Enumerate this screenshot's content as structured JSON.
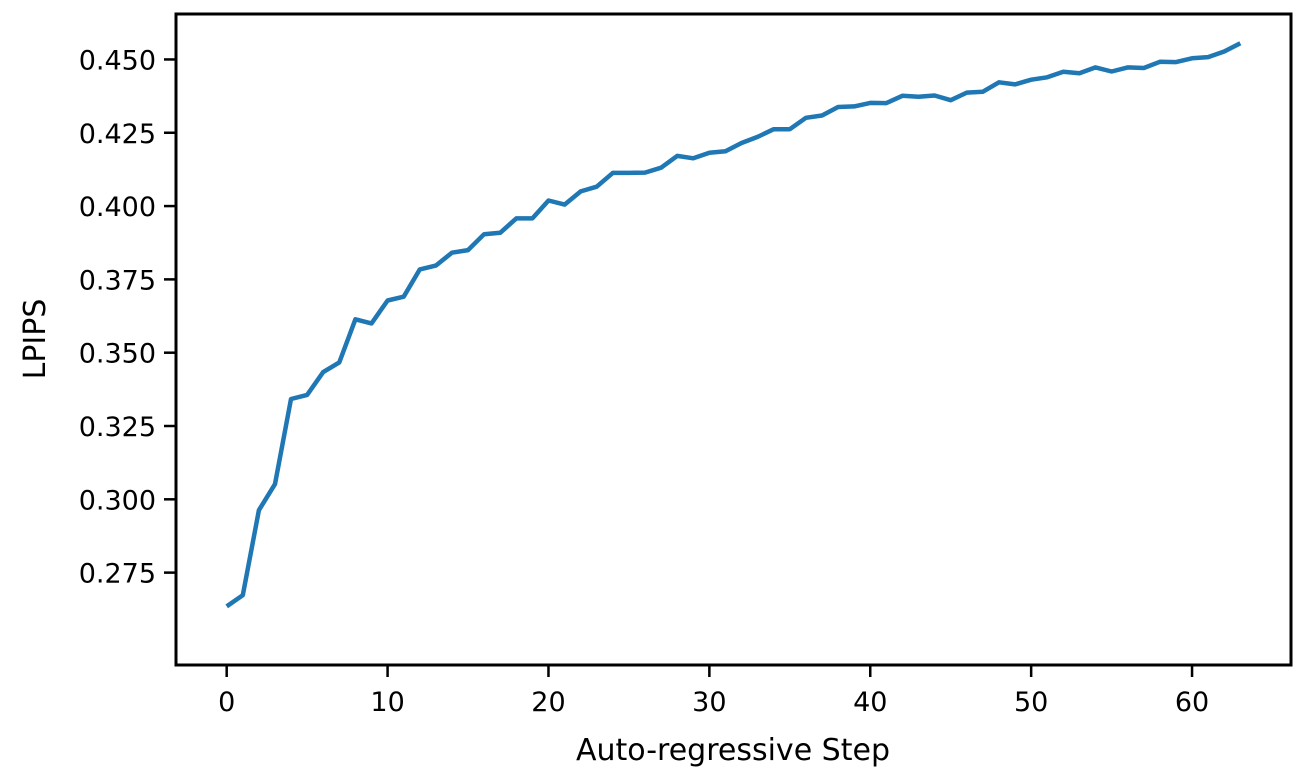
{
  "chart_data": {
    "type": "line",
    "title": "",
    "xlabel": "Auto-regressive Step",
    "ylabel": "LPIPS",
    "xlim": [
      -3.15,
      66.15
    ],
    "ylim": [
      0.2435,
      0.4655
    ],
    "xticks": [
      0,
      10,
      20,
      30,
      40,
      50,
      60
    ],
    "xtick_labels": [
      "0",
      "10",
      "20",
      "30",
      "40",
      "50",
      "60"
    ],
    "yticks": [
      0.275,
      0.3,
      0.325,
      0.35,
      0.375,
      0.4,
      0.425,
      0.45
    ],
    "ytick_labels": [
      "0.275",
      "0.300",
      "0.325",
      "0.350",
      "0.375",
      "0.400",
      "0.425",
      "0.450"
    ],
    "grid": false,
    "legend": "none",
    "series": [
      {
        "color": "#1f77b4",
        "x": [
          0,
          1,
          2,
          3,
          4,
          5,
          6,
          7,
          8,
          9,
          10,
          11,
          12,
          13,
          14,
          15,
          16,
          17,
          18,
          19,
          20,
          21,
          22,
          23,
          24,
          25,
          26,
          27,
          28,
          29,
          30,
          31,
          32,
          33,
          34,
          35,
          36,
          37,
          38,
          39,
          40,
          41,
          42,
          43,
          44,
          45,
          46,
          47,
          48,
          49,
          50,
          51,
          52,
          53,
          54,
          55,
          56,
          57,
          58,
          59,
          60,
          61,
          62,
          63
        ],
        "y": [
          0.2635,
          0.2673,
          0.2963,
          0.3052,
          0.3342,
          0.3356,
          0.3434,
          0.3467,
          0.3614,
          0.36,
          0.3678,
          0.3691,
          0.3784,
          0.3797,
          0.3841,
          0.385,
          0.3904,
          0.3909,
          0.3958,
          0.3958,
          0.4019,
          0.4005,
          0.405,
          0.4066,
          0.4113,
          0.4113,
          0.4114,
          0.4131,
          0.4171,
          0.4163,
          0.4182,
          0.4187,
          0.4215,
          0.4236,
          0.4262,
          0.4262,
          0.4301,
          0.4309,
          0.4338,
          0.434,
          0.4352,
          0.4351,
          0.4376,
          0.4373,
          0.4377,
          0.4361,
          0.4387,
          0.439,
          0.4422,
          0.4415,
          0.4431,
          0.4439,
          0.4458,
          0.4453,
          0.4473,
          0.4459,
          0.4473,
          0.4471,
          0.4492,
          0.4491,
          0.4504,
          0.4508,
          0.4527,
          0.4555
        ]
      }
    ]
  }
}
